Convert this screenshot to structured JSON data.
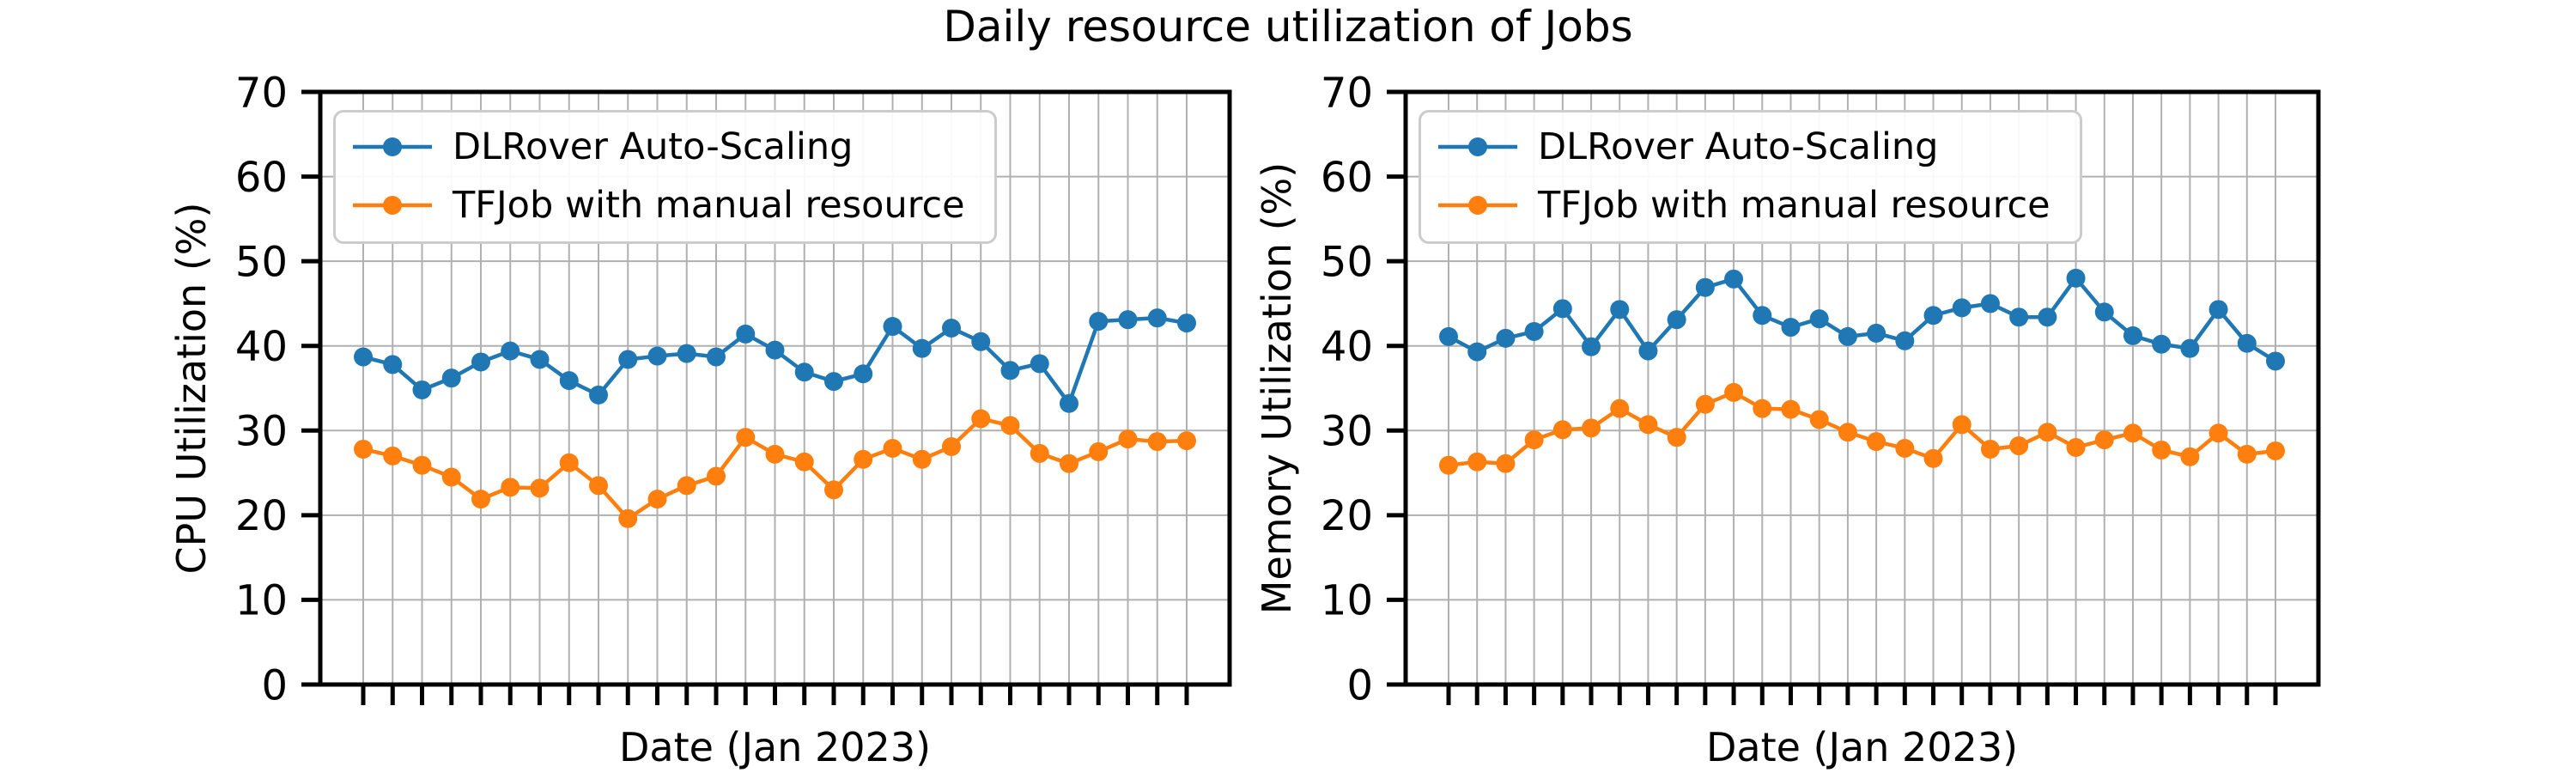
{
  "title": "Daily resource utilization of Jobs",
  "colors": {
    "dlrover_blue": "#1f77b4",
    "tfjob_orange": "#ff7f0e",
    "grid_gray": "#b0b0b0",
    "legend_border": "#cccccc"
  },
  "chart_data": [
    {
      "type": "line",
      "xlabel": "Date (Jan 2023)",
      "ylabel": "CPU Utilization (%)",
      "ylim": [
        0,
        70
      ],
      "yticks": [
        0,
        10,
        20,
        30,
        40,
        50,
        60,
        70
      ],
      "n_days": 29,
      "grid": true,
      "x_tick_labels_shown": false,
      "legend_position": "upper-left",
      "series": [
        {
          "name": "DLRover Auto-Scaling",
          "color": "#1f77b4",
          "values": [
            38.7,
            37.8,
            34.8,
            36.2,
            38.1,
            39.4,
            38.4,
            35.9,
            34.2,
            38.4,
            38.8,
            39.1,
            38.7,
            41.4,
            39.5,
            36.9,
            35.8,
            36.7,
            42.3,
            39.7,
            42.1,
            40.5,
            37.1,
            37.9,
            33.2,
            42.9,
            43.1,
            43.3,
            42.7
          ]
        },
        {
          "name": "TFJob with manual resource",
          "color": "#ff7f0e",
          "values": [
            27.8,
            27.0,
            25.9,
            24.5,
            21.9,
            23.3,
            23.2,
            26.2,
            23.5,
            19.6,
            21.9,
            23.5,
            24.6,
            29.2,
            27.2,
            26.3,
            23.0,
            26.6,
            27.9,
            26.6,
            28.1,
            31.4,
            30.6,
            27.3,
            26.1,
            27.5,
            29.0,
            28.7,
            28.8
          ]
        }
      ]
    },
    {
      "type": "line",
      "xlabel": "Date (Jan 2023)",
      "ylabel": "Memory Utilization (%)",
      "ylim": [
        0,
        70
      ],
      "yticks": [
        0,
        10,
        20,
        30,
        40,
        50,
        60,
        70
      ],
      "n_days": 30,
      "grid": true,
      "x_tick_labels_shown": false,
      "legend_position": "upper-left",
      "series": [
        {
          "name": "DLRover Auto-Scaling",
          "color": "#1f77b4",
          "values": [
            41.1,
            39.3,
            40.9,
            41.7,
            44.4,
            39.9,
            44.3,
            39.4,
            43.1,
            46.9,
            47.9,
            43.6,
            42.2,
            43.2,
            41.1,
            41.5,
            40.6,
            43.6,
            44.5,
            45.0,
            43.4,
            43.4,
            48.0,
            44.0,
            41.2,
            40.2,
            39.7,
            44.3,
            40.3,
            38.2
          ]
        },
        {
          "name": "TFJob with manual resource",
          "color": "#ff7f0e",
          "values": [
            25.9,
            26.3,
            26.1,
            28.9,
            30.1,
            30.3,
            32.6,
            30.7,
            29.2,
            33.1,
            34.5,
            32.6,
            32.5,
            31.3,
            29.8,
            28.7,
            27.9,
            26.7,
            30.7,
            27.8,
            28.2,
            29.8,
            28.0,
            28.9,
            29.7,
            27.7,
            26.9,
            29.7,
            27.2,
            27.6
          ]
        }
      ]
    }
  ]
}
